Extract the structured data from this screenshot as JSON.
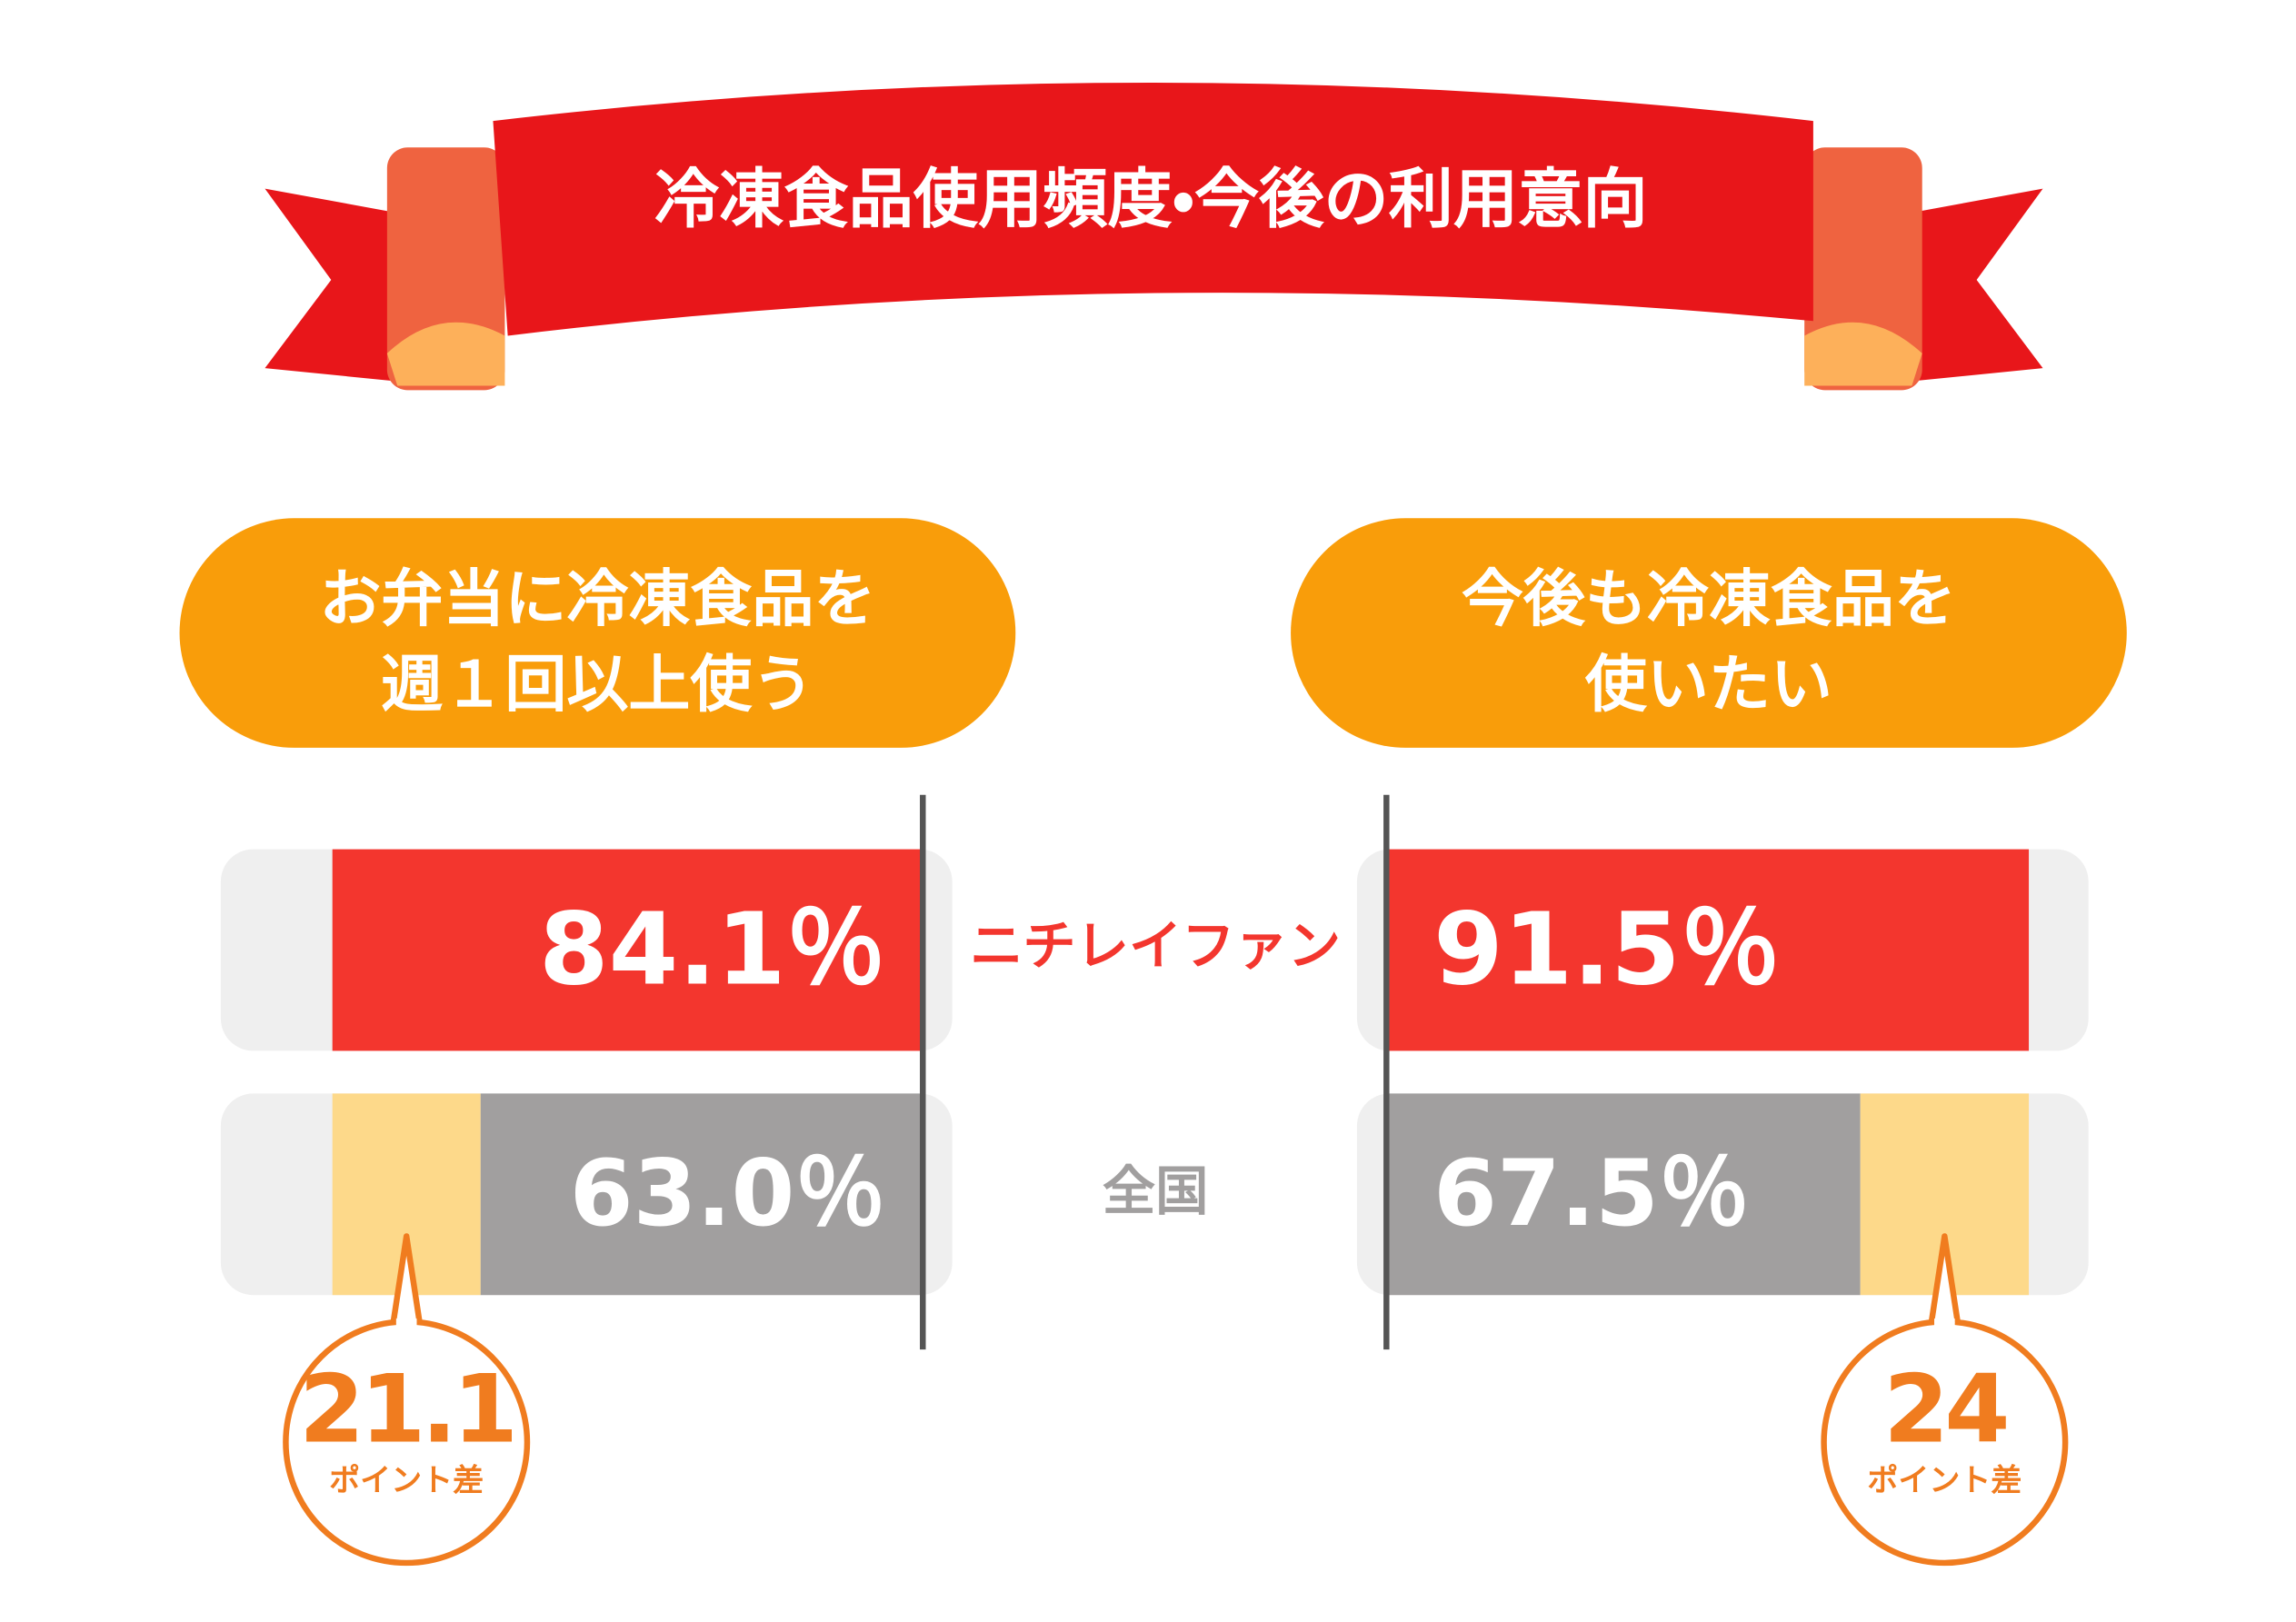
{
  "title": "冷凍食品使用頻度・今後の利用意向",
  "categories": [
    "ニチレイファン",
    "全国"
  ],
  "chart_data": [
    {
      "type": "bar",
      "reversed": true,
      "title": [
        "お弁当に冷凍食品を",
        "週１回以上使う"
      ],
      "values": [
        84.1,
        63.0
      ],
      "value_labels": [
        "84.1％",
        "63.0％"
      ],
      "colors": [
        "#f3362e",
        "#a19f9f"
      ],
      "xlim": [
        0,
        100
      ],
      "difference": {
        "value": 21.1,
        "label": "ポイント差"
      },
      "difference_color": "#fdd98a"
    },
    {
      "type": "bar",
      "reversed": false,
      "title": [
        "今後も冷凍食品を",
        "使いたい"
      ],
      "values": [
        91.5,
        67.5
      ],
      "value_labels": [
        "91.5％",
        "67.5％"
      ],
      "colors": [
        "#f3362e",
        "#a19f9f"
      ],
      "xlim": [
        0,
        100
      ],
      "difference": {
        "value": 24,
        "label": "ポイント差"
      },
      "difference_color": "#fdd98a"
    }
  ]
}
